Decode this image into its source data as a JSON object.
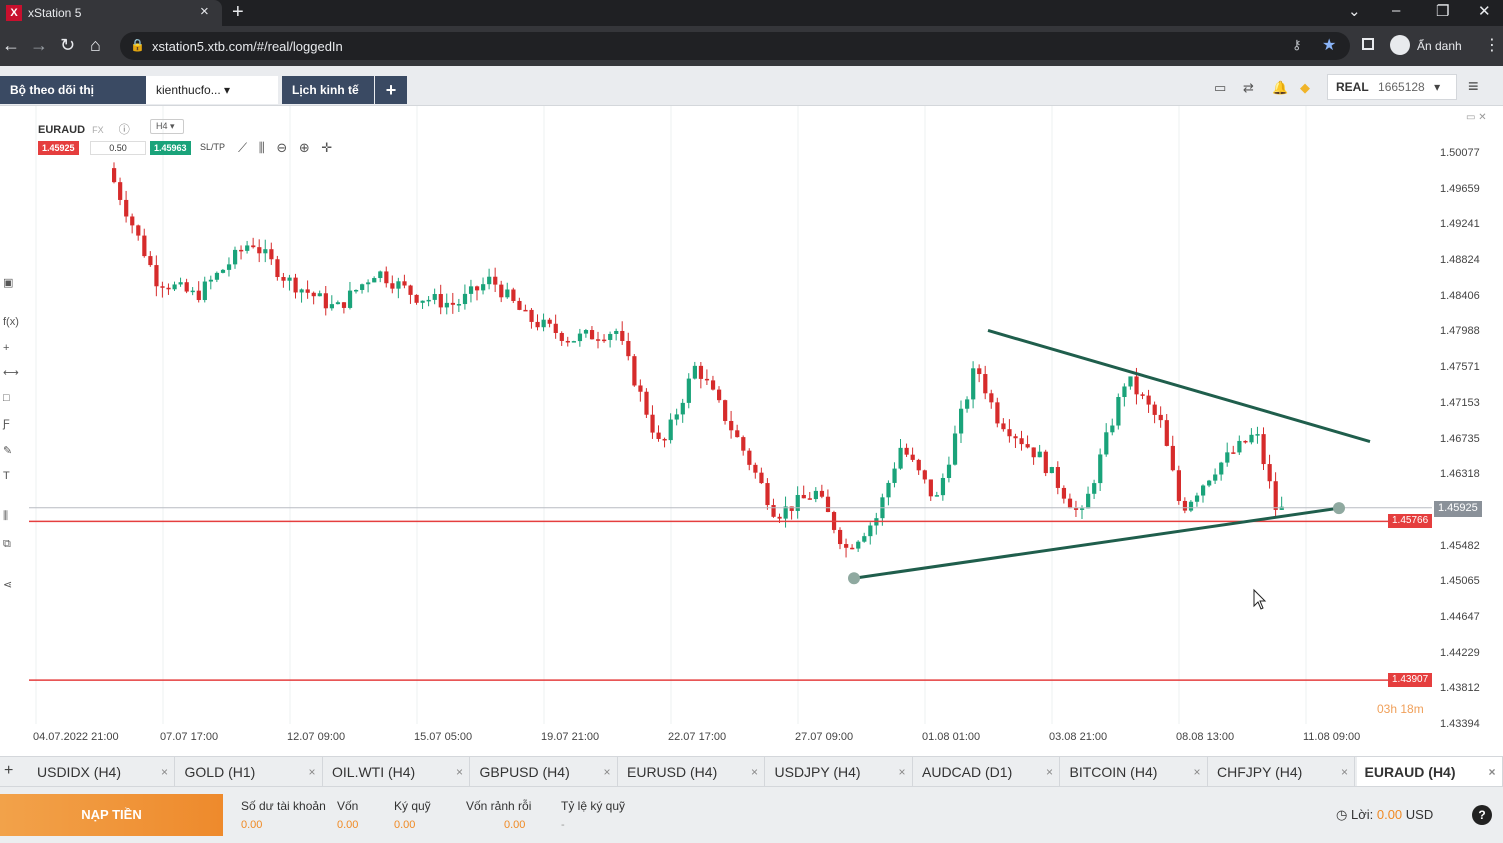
{
  "browser": {
    "tab_title": "xStation 5",
    "url": "xstation5.xtb.com/#/real/loggedIn",
    "profile": "Ẩn danh"
  },
  "app": {
    "tabs": [
      "Bộ theo dõi thị trường",
      "kienthucfo...",
      "Lịch kinh tế",
      "+"
    ],
    "account_type": "REAL",
    "account_id": "1665128"
  },
  "chart_header": {
    "symbol": "EURAUD",
    "symbol_tag": "FX",
    "timeframe": "H4",
    "sell": "1.45925",
    "lot": "0.50",
    "buy": "1.45963",
    "sltp": "SL/TP"
  },
  "chart_data": {
    "type": "candlestick",
    "ylim": [
      1.4339,
      1.5008
    ],
    "y_ticks": [
      "1.50077",
      "1.49659",
      "1.49241",
      "1.48824",
      "1.48406",
      "1.47988",
      "1.47571",
      "1.47153",
      "1.46735",
      "1.46318",
      "1.45482",
      "1.45065",
      "1.44647",
      "1.44229",
      "1.43812",
      "1.43394"
    ],
    "x_ticks": [
      "04.07.2022 21:00",
      "07.07 17:00",
      "12.07 09:00",
      "15.07 05:00",
      "19.07 21:00",
      "22.07 17:00",
      "27.07 09:00",
      "01.08 01:00",
      "03.08 21:00",
      "08.08 13:00",
      "11.08 09:00"
    ],
    "current_price": "1.45925",
    "levels": [
      "1.45766",
      "1.43907"
    ],
    "trendlines": [
      {
        "name": "upper",
        "from_price": 1.48,
        "to_price": 1.467
      },
      {
        "name": "lower",
        "from_price": 1.451,
        "to_price": 1.4592
      }
    ],
    "countdown": "03h 18m"
  },
  "instruments": [
    "USDIDX (H4)",
    "GOLD (H1)",
    "OIL.WTI (H4)",
    "GBPUSD (H4)",
    "EURUSD (H4)",
    "USDJPY (H4)",
    "AUDCAD (D1)",
    "BITCOIN (H4)",
    "CHFJPY (H4)",
    "EURAUD (H4)"
  ],
  "footer": {
    "deposit": "NẠP TIỀN",
    "items": [
      {
        "label": "Số dư tài khoản",
        "value": "0.00"
      },
      {
        "label": "Vốn",
        "value": "0.00"
      },
      {
        "label": "Ký quỹ",
        "value": "0.00"
      },
      {
        "label": "Vốn rảnh rỗi",
        "value": "0.00"
      },
      {
        "label": "Tỷ lệ ký quỹ",
        "value": "-"
      }
    ],
    "profit_label": "Lời:",
    "profit_value": "0.00",
    "profit_ccy": "USD"
  },
  "colors": {
    "bull": "#1aa37a",
    "bear": "#d62b2b",
    "trend": "#1f5e4c",
    "level": "#e53e3e"
  }
}
